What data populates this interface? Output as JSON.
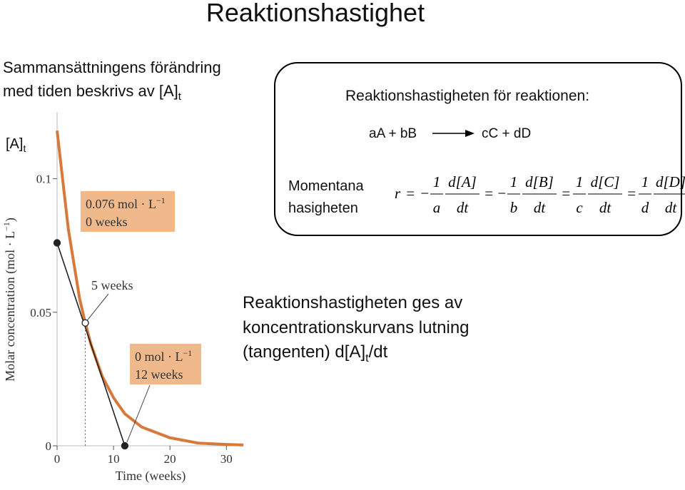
{
  "title": "Reaktionshastighet",
  "intro": {
    "line1": "Sammansättningens förändring",
    "line2": "med tiden beskrivs av [A]",
    "line2_sub": "t"
  },
  "axis_symbol": {
    "main": "[A]",
    "sub": "t"
  },
  "rate_box": {
    "heading": "Reaktionshastigheten för reaktionen:",
    "reactants": "aA + bB",
    "products": "cC + dD",
    "label_line1": "Momentana",
    "label_line2": "hasigheten",
    "equation": {
      "lhs": "r",
      "equals": "=",
      "terms": [
        {
          "sign": "−",
          "coef_num": "1",
          "coef_den": "a",
          "num": "d[A]",
          "den": "dt"
        },
        {
          "sign": "−",
          "coef_num": "1",
          "coef_den": "b",
          "num": "d[B]",
          "den": "dt"
        },
        {
          "coef_num": "1",
          "coef_den": "c",
          "num": "d[C]",
          "den": "dt"
        },
        {
          "coef_num": "1",
          "coef_den": "d",
          "num": "d[D]",
          "den": "dt"
        }
      ]
    }
  },
  "conclusion": {
    "line1": "Reaktionshastigheten ges av",
    "line2": "koncentrationskurvans lutning",
    "line3": "(tangenten) d[A]",
    "line3_sub": "t",
    "line3_end": "/dt"
  },
  "chart_data": {
    "type": "line",
    "x_label": "Time (weeks)",
    "y_label": "Molar concentration (mol · L",
    "y_label_sup": "−1",
    "y_label_end": ")",
    "xlim": [
      0,
      33
    ],
    "ylim": [
      0,
      0.125
    ],
    "xticks": [
      0,
      10,
      20,
      30
    ],
    "yticks": [
      0,
      0.05,
      0.1
    ],
    "series": [
      {
        "color": "#d7793a",
        "x": [
          0,
          2,
          4,
          5,
          6,
          8,
          10,
          12,
          15,
          20,
          25,
          30,
          33
        ],
        "values": [
          0.118,
          0.081,
          0.055,
          0.046,
          0.038,
          0.026,
          0.018,
          0.012,
          0.007,
          0.003,
          0.001,
          0.0005,
          0.0003
        ]
      },
      {
        "color": "#222222",
        "x": [
          0,
          12
        ],
        "values": [
          0.076,
          0
        ]
      }
    ],
    "points": [
      {
        "x": 0,
        "y": 0.076,
        "filled": true
      },
      {
        "x": 5,
        "y": 0.046,
        "filled": false
      },
      {
        "x": 12,
        "y": 0,
        "filled": true
      }
    ],
    "annotations": [
      {
        "line1": "0.076 mol · L",
        "line1_sup": "−1",
        "line2": "0 weeks"
      },
      {
        "line1": "5 weeks"
      },
      {
        "line1": "0 mol · L",
        "line1_sup": "−1",
        "line2": "12 weeks"
      }
    ]
  }
}
